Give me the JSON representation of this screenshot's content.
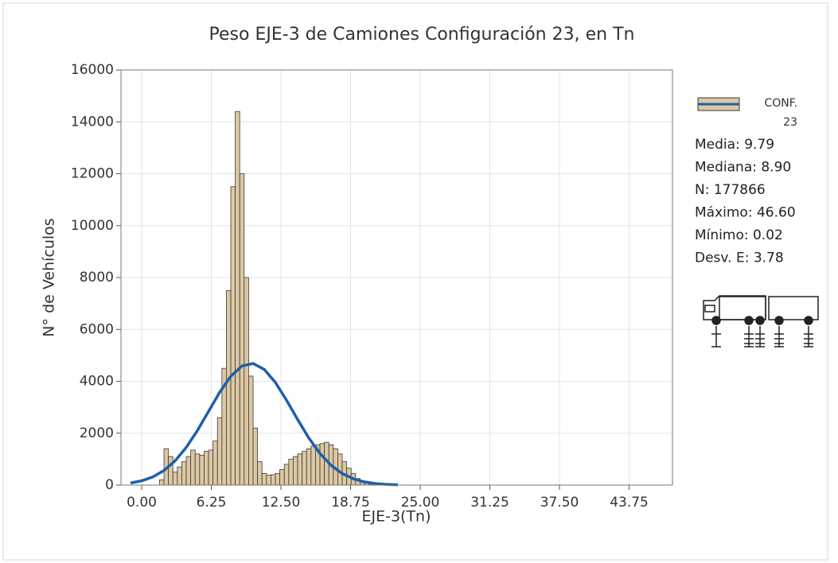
{
  "chart_data": {
    "type": "histogram",
    "title": "Peso EJE-3  de Camiones Configuración 23, en Tn",
    "x_label": "EJE-3(Tn)",
    "y_label": "N° de Vehículos",
    "bins": [
      1.6,
      2.0,
      2.4,
      2.8,
      3.2,
      3.6,
      4.0,
      4.4,
      4.8,
      5.2,
      5.6,
      6.0,
      6.4,
      6.8,
      7.2,
      7.6,
      8.0,
      8.4,
      8.8,
      9.2,
      9.6,
      10.0,
      10.4,
      10.8,
      11.2,
      11.6,
      12.0,
      12.4,
      12.8,
      13.2,
      13.6,
      14.0,
      14.4,
      14.8,
      15.2,
      15.6,
      16.0,
      16.4,
      16.8,
      17.2,
      17.6,
      18.0,
      18.4,
      18.8,
      19.2,
      19.6,
      20.0,
      20.4,
      20.8,
      21.2
    ],
    "values": [
      200,
      1400,
      1100,
      500,
      700,
      900,
      1100,
      1350,
      1200,
      1150,
      1300,
      1350,
      1700,
      2600,
      4500,
      7500,
      11500,
      14400,
      12000,
      8000,
      4200,
      2200,
      900,
      450,
      380,
      400,
      450,
      600,
      800,
      1000,
      1100,
      1200,
      1300,
      1400,
      1500,
      1550,
      1600,
      1650,
      1550,
      1400,
      1200,
      900,
      650,
      450,
      250,
      130,
      70,
      35,
      15
    ],
    "color": "#dcc8a2",
    "edgecolor": "#3a3a3a",
    "series_name": "CONF. 23",
    "fit": {
      "color": "#1f5fa8",
      "x": [
        -1,
        0,
        1,
        2,
        3,
        4,
        5,
        6,
        7,
        8,
        9,
        10,
        11,
        12,
        13,
        14,
        15,
        16,
        17,
        18,
        19,
        20,
        21,
        22,
        23
      ],
      "values": [
        80,
        164,
        314,
        561,
        935,
        1452,
        2102,
        2838,
        3576,
        4195,
        4592,
        4686,
        4459,
        3955,
        3272,
        2524,
        1815,
        1217,
        761,
        444,
        241,
        122,
        58,
        25,
        10
      ]
    },
    "stats": [
      "Media: 9.79",
      "Mediana: 8.90",
      "N: 177866",
      "Máximo: 46.60",
      "Mínimo: 0.02",
      "Desv. E: 3.78"
    ],
    "xlim": [
      -1.86,
      47.64
    ],
    "ylim": [
      0,
      16000
    ],
    "xticks": [
      {
        "value": 0,
        "label": "0.00"
      },
      6.25,
      {
        "value": 12.5,
        "label": "12.50"
      },
      18.75,
      {
        "value": 25,
        "label": "25.00"
      },
      31.25,
      {
        "value": 37.5,
        "label": "37.50"
      },
      43.75
    ],
    "yticks": [
      0,
      2000,
      4000,
      6000,
      8000,
      10000,
      12000,
      14000,
      16000
    ],
    "grid": true
  }
}
